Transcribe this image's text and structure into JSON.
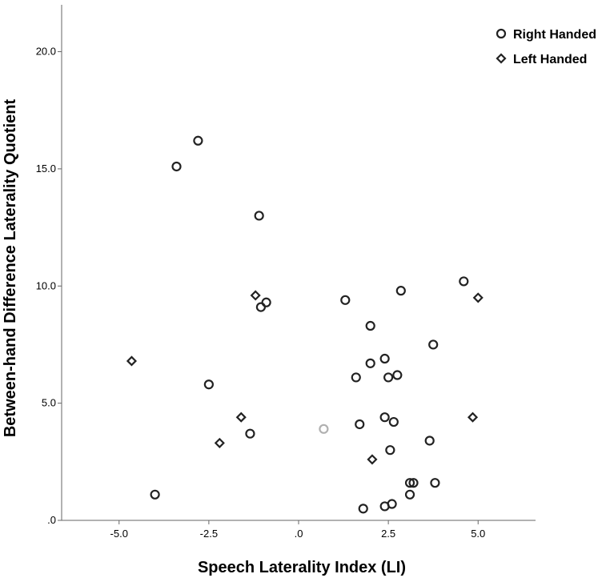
{
  "chart_data": {
    "type": "scatter",
    "xlabel": "Speech Laterality Index (LI)",
    "ylabel": "Between-hand Difference Laterality Quotient",
    "xlim": [
      -6.6,
      6.6
    ],
    "ylim": [
      0,
      22
    ],
    "x_ticks": [
      -5.0,
      -2.5,
      0.0,
      2.5,
      5.0
    ],
    "x_tick_labels": [
      "-5.0",
      "-2.5",
      ".0",
      "2.5",
      "5.0"
    ],
    "y_ticks": [
      0,
      5,
      10,
      15,
      20
    ],
    "y_tick_labels": [
      ".0",
      "5.0",
      "10.0",
      "15.0",
      "20.0"
    ],
    "legend_placement": "top-right",
    "grid": false,
    "series": [
      {
        "name": "Right Handed",
        "marker": "circle",
        "color": "#222222",
        "points": [
          [
            -2.8,
            16.2
          ],
          [
            -3.4,
            15.1
          ],
          [
            -1.1,
            13.0
          ],
          [
            -0.9,
            9.3
          ],
          [
            -1.05,
            9.1
          ],
          [
            -2.5,
            5.8
          ],
          [
            -1.35,
            3.7
          ],
          [
            -4.0,
            1.1
          ],
          [
            1.3,
            9.4
          ],
          [
            2.85,
            9.8
          ],
          [
            4.6,
            10.2
          ],
          [
            2.0,
            8.3
          ],
          [
            3.75,
            7.5
          ],
          [
            2.4,
            6.9
          ],
          [
            2.0,
            6.7
          ],
          [
            2.75,
            6.2
          ],
          [
            1.6,
            6.1
          ],
          [
            2.5,
            6.1
          ],
          [
            2.4,
            4.4
          ],
          [
            2.65,
            4.2
          ],
          [
            1.7,
            4.1
          ],
          [
            3.65,
            3.4
          ],
          [
            2.55,
            3.0
          ],
          [
            3.1,
            1.6
          ],
          [
            3.2,
            1.6
          ],
          [
            3.8,
            1.6
          ],
          [
            3.1,
            1.1
          ],
          [
            2.6,
            0.7
          ],
          [
            2.4,
            0.6
          ],
          [
            1.8,
            0.5
          ]
        ]
      },
      {
        "name": "Left Handed",
        "marker": "diamond",
        "color": "#222222",
        "points": [
          [
            -4.65,
            6.8
          ],
          [
            -1.2,
            9.6
          ],
          [
            5.0,
            9.5
          ],
          [
            -1.6,
            4.4
          ],
          [
            -2.2,
            3.3
          ],
          [
            4.85,
            4.4
          ],
          [
            2.05,
            2.6
          ]
        ]
      },
      {
        "name": "",
        "marker": "circle",
        "color": "#b0b0b0",
        "points": [
          [
            0.7,
            3.9
          ]
        ]
      }
    ]
  }
}
